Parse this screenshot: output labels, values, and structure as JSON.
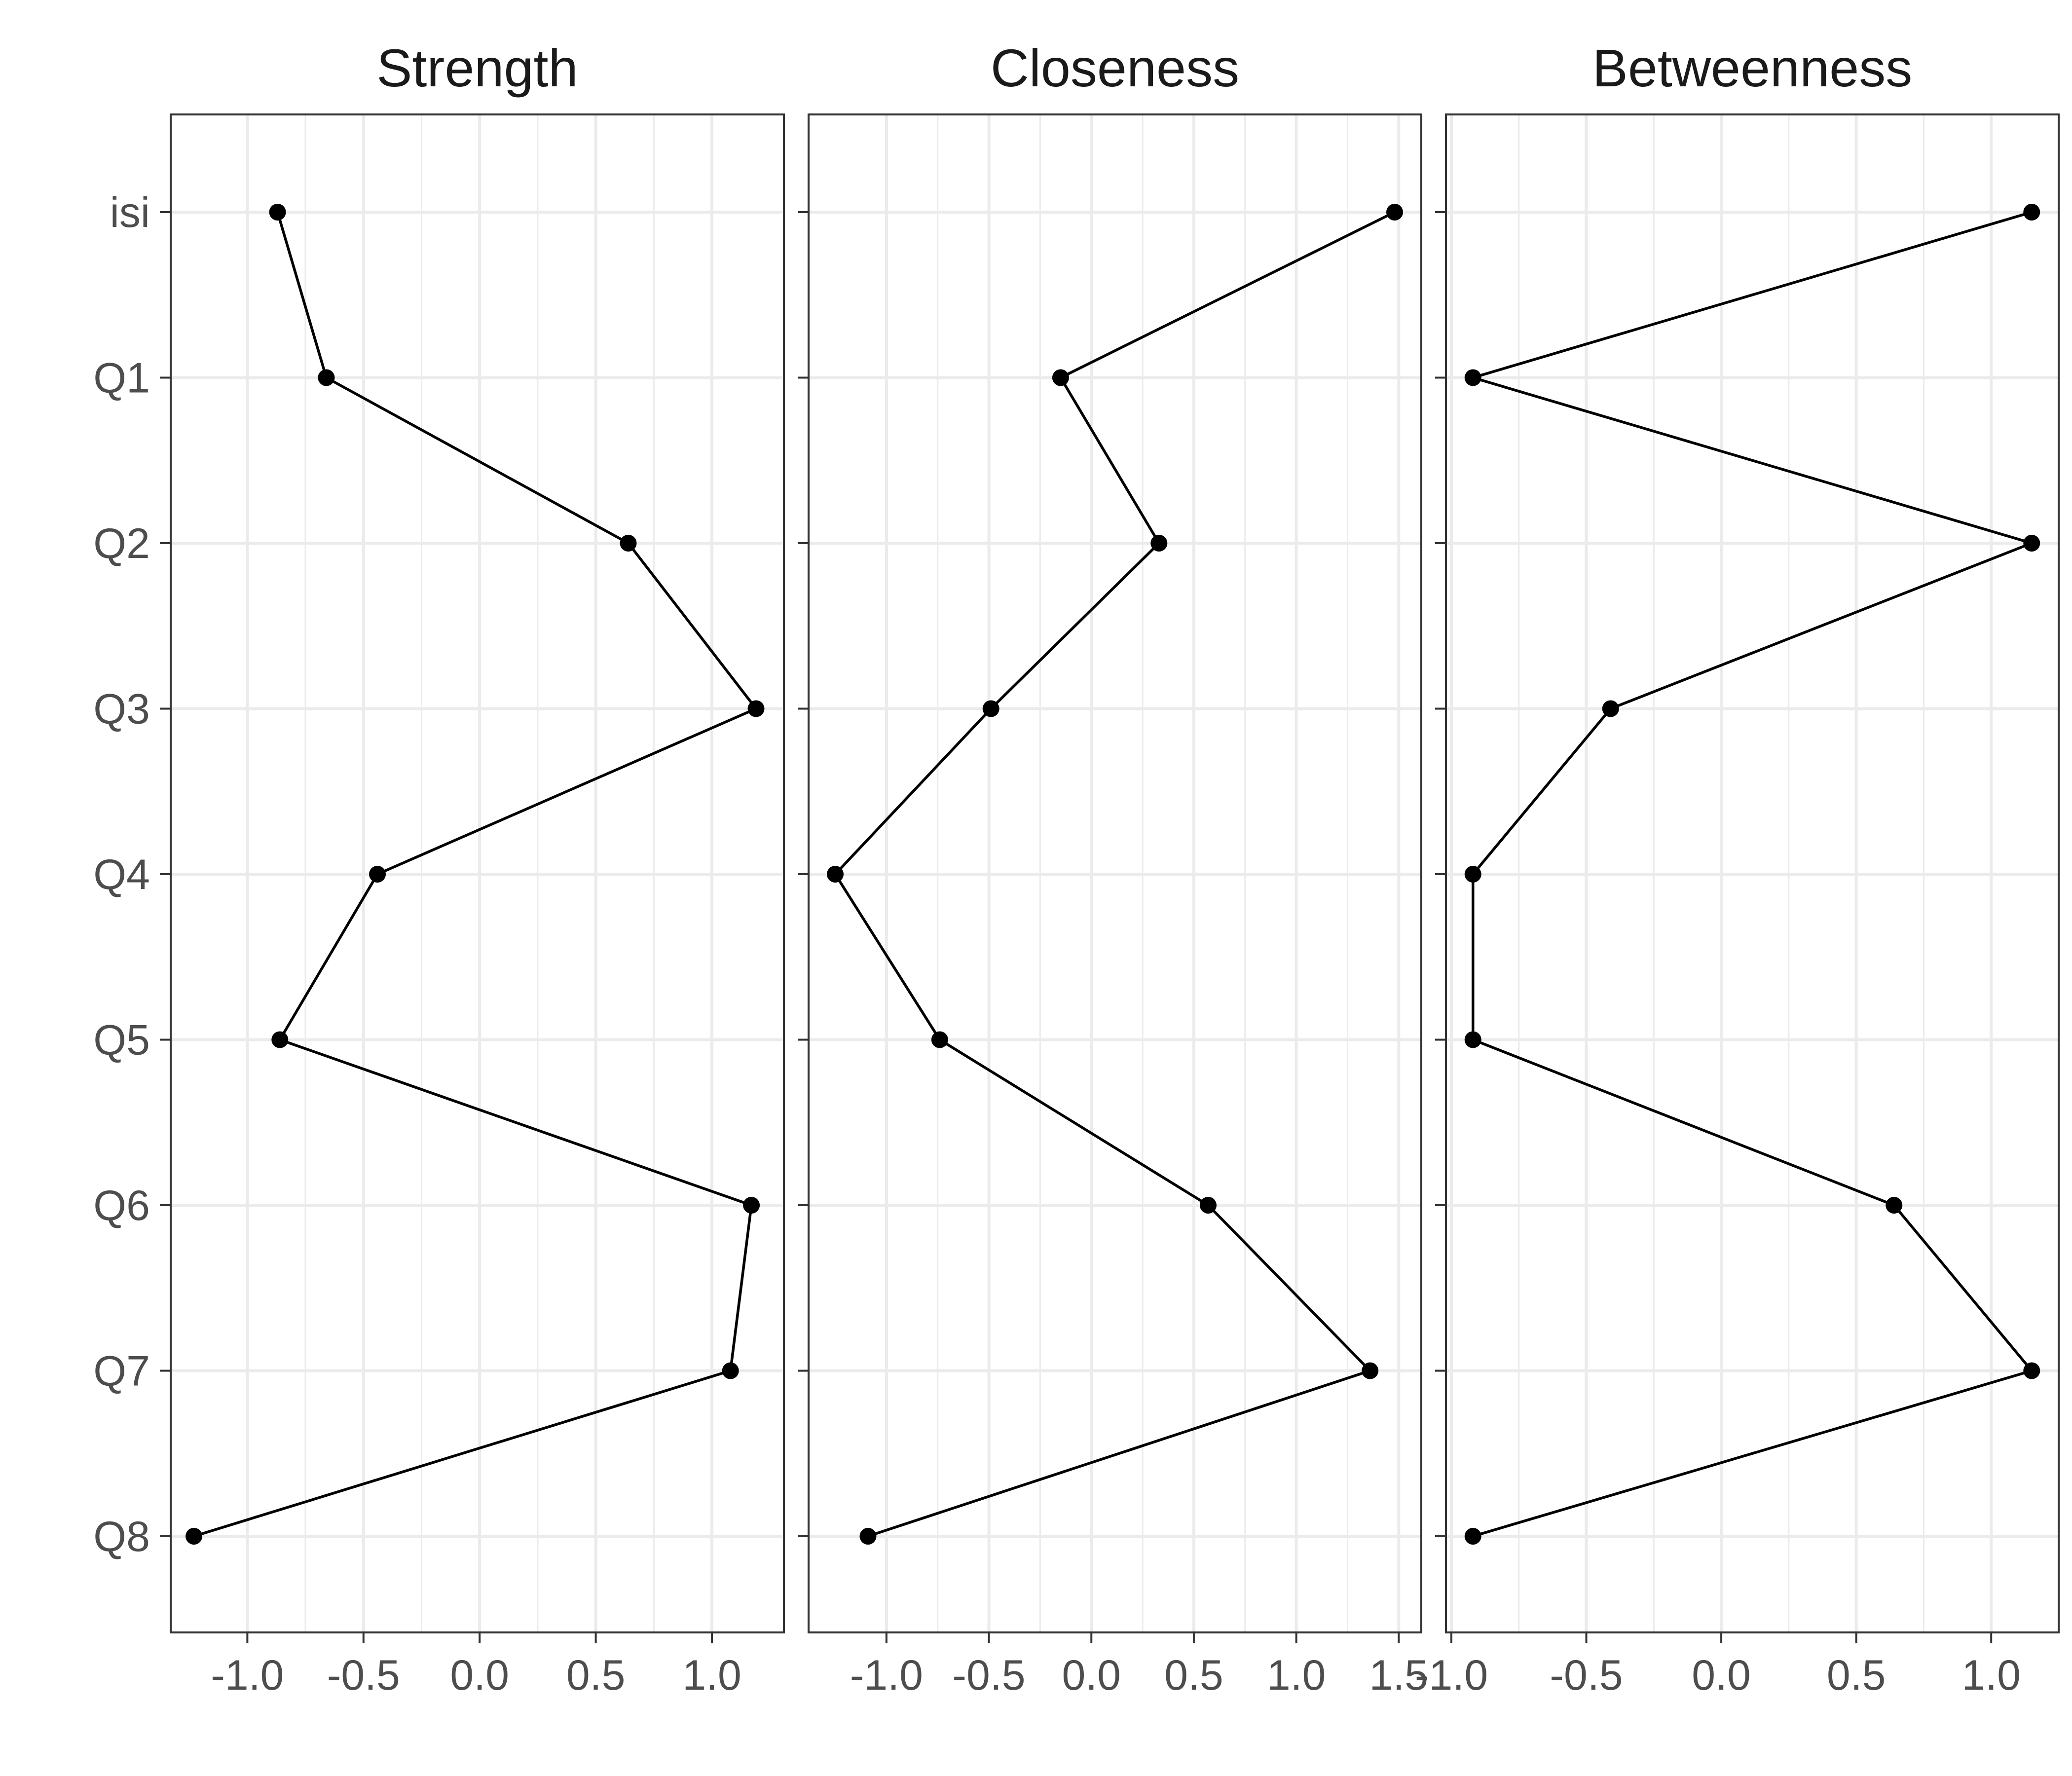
{
  "chart_data": {
    "type": "line",
    "orientation": "horizontal-values",
    "facets": [
      "Strength",
      "Closeness",
      "Betweenness"
    ],
    "categories": [
      "isi",
      "Q1",
      "Q2",
      "Q3",
      "Q4",
      "Q5",
      "Q6",
      "Q7",
      "Q8"
    ],
    "panels": [
      {
        "title": "Strength",
        "values": [
          -0.87,
          -0.66,
          0.64,
          1.19,
          -0.44,
          -0.86,
          1.17,
          1.08,
          -1.23
        ],
        "xlim": [
          -1.33,
          1.31
        ],
        "ticks": [
          -1.0,
          -0.5,
          0.0,
          0.5,
          1.0
        ],
        "tick_labels": [
          "-1.0",
          "-0.5",
          "0.0",
          "0.5",
          "1.0"
        ]
      },
      {
        "title": "Closeness",
        "values": [
          1.48,
          -0.15,
          0.33,
          -0.49,
          -1.25,
          -0.74,
          0.57,
          1.36,
          -1.09
        ],
        "xlim": [
          -1.38,
          1.61
        ],
        "ticks": [
          -1.0,
          -0.5,
          0.0,
          0.5,
          1.0,
          1.5
        ],
        "tick_labels": [
          "-1.0",
          "-0.5",
          "0.0",
          "0.5",
          "1.0",
          "1.5"
        ]
      },
      {
        "title": "Betweenness",
        "values": [
          1.15,
          -0.92,
          1.15,
          -0.41,
          -0.92,
          -0.92,
          0.64,
          1.15,
          -0.92
        ],
        "xlim": [
          -1.02,
          1.25
        ],
        "ticks": [
          -1.0,
          -0.5,
          0.0,
          0.5,
          1.0
        ],
        "tick_labels": [
          "-1.0",
          "-0.5",
          "0.0",
          "0.5",
          "1.0"
        ]
      }
    ],
    "xlabel": "",
    "ylabel": "",
    "grid": true,
    "legend": "none"
  }
}
